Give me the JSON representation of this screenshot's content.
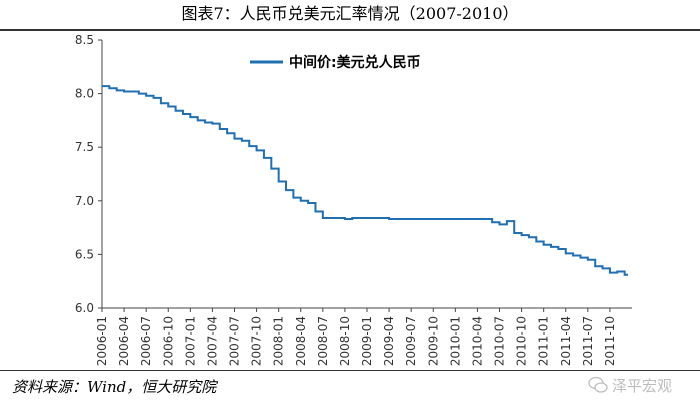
{
  "header": {
    "title": "图表7：人民币兑美元汇率情况（2007-2010）"
  },
  "footer": {
    "source": "资料来源：Wind，恒大研究院",
    "watermark": "泽平宏观"
  },
  "chart_data": {
    "type": "line",
    "title": "",
    "xlabel": "",
    "ylabel": "",
    "ylim": [
      6.0,
      8.5
    ],
    "yticks": [
      "8.5",
      "8.0",
      "7.5",
      "7.0",
      "6.5",
      "6.0"
    ],
    "xticks": [
      "2006-01",
      "2006-04",
      "2006-07",
      "2006-10",
      "2007-01",
      "2007-04",
      "2007-07",
      "2007-10",
      "2008-01",
      "2008-04",
      "2008-07",
      "2008-10",
      "2009-01",
      "2009-04",
      "2009-07",
      "2009-10",
      "2010-01",
      "2010-04",
      "2010-07",
      "2010-10",
      "2011-01",
      "2011-04",
      "2011-07",
      "2011-10"
    ],
    "legend_position": "top",
    "grid": false,
    "series": [
      {
        "name": "中间价:美元兑人民币",
        "color": "#1f6fb2",
        "x": [
          "2006-01",
          "2006-02",
          "2006-03",
          "2006-04",
          "2006-05",
          "2006-06",
          "2006-07",
          "2006-08",
          "2006-09",
          "2006-10",
          "2006-11",
          "2006-12",
          "2007-01",
          "2007-02",
          "2007-03",
          "2007-04",
          "2007-05",
          "2007-06",
          "2007-07",
          "2007-08",
          "2007-09",
          "2007-10",
          "2007-11",
          "2007-12",
          "2008-01",
          "2008-02",
          "2008-03",
          "2008-04",
          "2008-05",
          "2008-06",
          "2008-07",
          "2008-08",
          "2008-09",
          "2008-10",
          "2008-11",
          "2008-12",
          "2009-01",
          "2009-04",
          "2009-07",
          "2009-10",
          "2010-01",
          "2010-04",
          "2010-06",
          "2010-07",
          "2010-08",
          "2010-09",
          "2010-10",
          "2010-11",
          "2010-12",
          "2011-01",
          "2011-02",
          "2011-03",
          "2011-04",
          "2011-05",
          "2011-06",
          "2011-07",
          "2011-08",
          "2011-09",
          "2011-10",
          "2011-11",
          "2011-12"
        ],
        "values": [
          8.07,
          8.05,
          8.03,
          8.02,
          8.02,
          8.0,
          7.98,
          7.96,
          7.91,
          7.88,
          7.84,
          7.81,
          7.78,
          7.75,
          7.73,
          7.72,
          7.67,
          7.63,
          7.58,
          7.56,
          7.51,
          7.47,
          7.4,
          7.3,
          7.18,
          7.1,
          7.03,
          7.0,
          6.98,
          6.9,
          6.84,
          6.84,
          6.84,
          6.83,
          6.84,
          6.84,
          6.84,
          6.83,
          6.83,
          6.83,
          6.83,
          6.83,
          6.8,
          6.78,
          6.81,
          6.7,
          6.68,
          6.66,
          6.62,
          6.59,
          6.57,
          6.55,
          6.51,
          6.49,
          6.47,
          6.45,
          6.39,
          6.37,
          6.33,
          6.34,
          6.31
        ]
      }
    ]
  }
}
